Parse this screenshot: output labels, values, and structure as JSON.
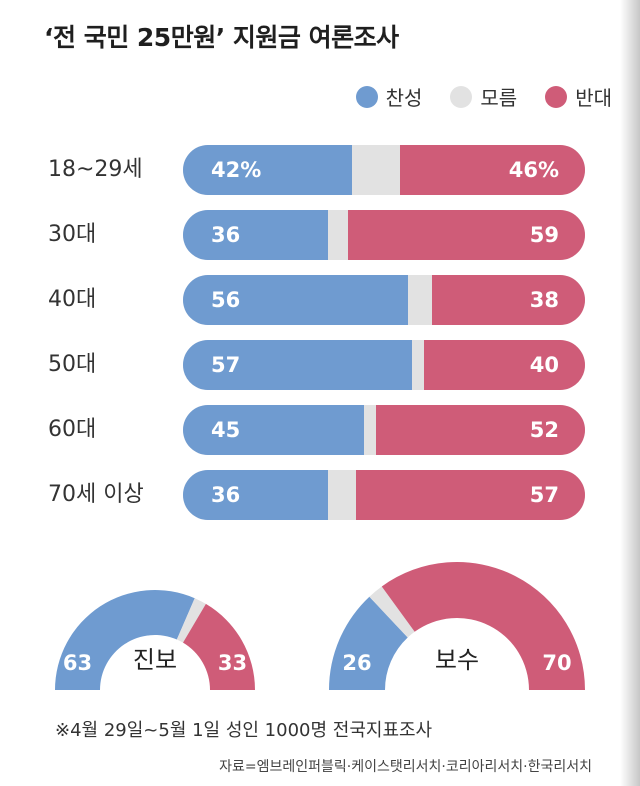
{
  "title": "‘전 국민 25만원’ 지원금 여론조사",
  "legend": [
    {
      "label": "찬성",
      "color": "#6f9bd0"
    },
    {
      "label": "모름",
      "color": "#e2e2e2"
    },
    {
      "label": "반대",
      "color": "#cf5c78"
    }
  ],
  "chart_data": [
    {
      "type": "bar",
      "stacked": true,
      "orientation": "horizontal",
      "title": "‘전 국민 25만원’ 지원금 여론조사",
      "categories": [
        "18~29세",
        "30대",
        "40대",
        "50대",
        "60대",
        "70세 이상"
      ],
      "series": [
        {
          "name": "찬성",
          "values": [
            42,
            36,
            56,
            57,
            45,
            36
          ],
          "labels": [
            "42%",
            "36",
            "56",
            "57",
            "45",
            "36"
          ]
        },
        {
          "name": "모름",
          "values": [
            12,
            5,
            6,
            3,
            3,
            7
          ]
        },
        {
          "name": "반대",
          "values": [
            46,
            59,
            38,
            40,
            52,
            57
          ],
          "labels": [
            "46%",
            "59",
            "38",
            "40",
            "52",
            "57"
          ]
        }
      ],
      "xlim": [
        0,
        100
      ],
      "legend_position": "top-right"
    },
    {
      "type": "pie",
      "style": "half-donut",
      "label": "진보",
      "slices": [
        {
          "name": "찬성",
          "value": 63,
          "label": "63"
        },
        {
          "name": "모름",
          "value": 4
        },
        {
          "name": "반대",
          "value": 33,
          "label": "33"
        }
      ]
    },
    {
      "type": "pie",
      "style": "half-donut",
      "label": "보수",
      "slices": [
        {
          "name": "찬성",
          "value": 26,
          "label": "26"
        },
        {
          "name": "모름",
          "value": 4
        },
        {
          "name": "반대",
          "value": 70,
          "label": "70"
        }
      ]
    }
  ],
  "footnote": "※4월 29일~5월 1일 성인 1000명 전국지표조사",
  "source": "자료=엠브레인퍼블릭·케이스탯리서치·코리아리서치·한국리서치"
}
